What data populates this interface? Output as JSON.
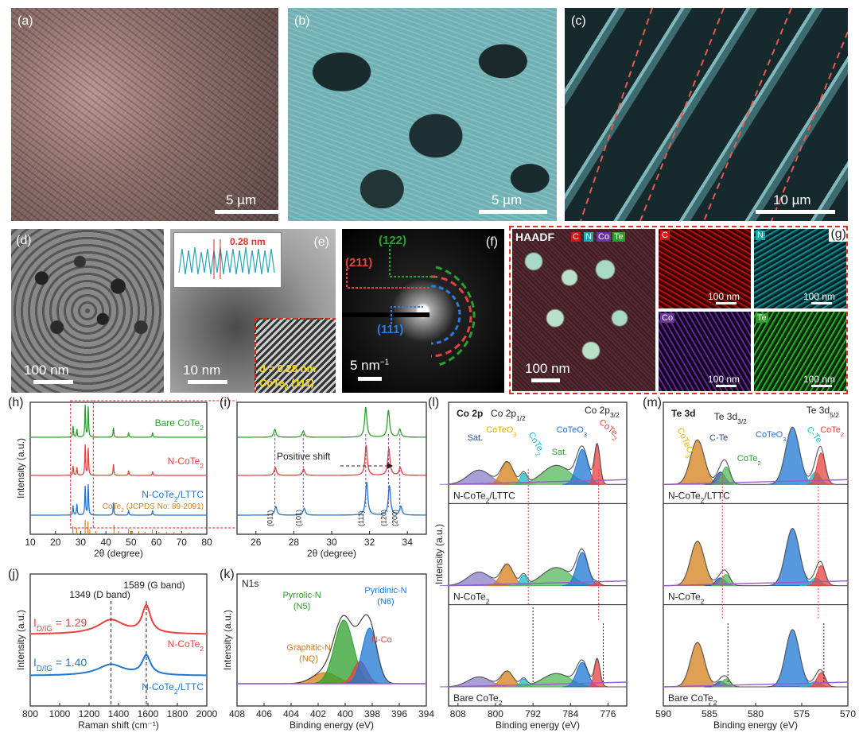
{
  "labels": {
    "a": "(a)",
    "b": "(b)",
    "c": "(c)",
    "d": "(d)",
    "e": "(e)",
    "f": "(f)",
    "g": "(g)",
    "h": "(h)",
    "i": "(i)",
    "j": "(j)",
    "k": "(k)",
    "l": "(l)",
    "m": "(m)"
  },
  "scalebars": {
    "a": "5 µm",
    "b": "5 µm",
    "c": "10 µm",
    "d": "100 nm",
    "e": "10 nm",
    "f": "5 nm",
    "haadf": "100 nm",
    "map": "100 nm"
  },
  "panel_e": {
    "profile_d": "0.28 nm",
    "d_label": "d = 0.28 nm",
    "plane": "CoTe",
    "plane_sub": "2",
    "plane_tail": " (111)"
  },
  "panel_f": {
    "p122": "(122)",
    "p211": "(211)",
    "p111": "(111)",
    "unit_sup": "−1"
  },
  "panel_g": {
    "haadf": "HAADF",
    "C": "C",
    "N": "N",
    "Co": "Co",
    "Te": "Te",
    "CoTe": "CoTe"
  },
  "colors": {
    "green": "#2ca02c",
    "red": "#e8423f",
    "blue": "#1f77d4",
    "orange": "#d4801a",
    "purple": "#7b4fb0",
    "cyan": "#17becf",
    "gold": "#e0b000"
  },
  "chart_data": [
    {
      "id": "h",
      "type": "line",
      "xlabel": "2θ (degree)",
      "ylabel": "Intensity (a.u.)",
      "xlim": [
        10,
        80
      ],
      "xticks": [
        10,
        20,
        30,
        40,
        50,
        60,
        70,
        80
      ],
      "series": [
        {
          "name": "Bare CoTe2",
          "peaks": [
            27,
            28.5,
            31.8,
            33,
            43,
            49,
            58.5
          ]
        },
        {
          "name": "N-CoTe2",
          "peaks": [
            27,
            28.5,
            31.8,
            33,
            43,
            49,
            58.5
          ]
        },
        {
          "name": "N-CoTe2/LTTC",
          "peaks": [
            27,
            28.5,
            31.8,
            33,
            43,
            49,
            58.5
          ]
        }
      ],
      "reference": "CoTe2 (JCPDS No: 89-2091)",
      "ref_peaks": [
        26.9,
        28.4,
        31.8,
        32.9,
        33.6,
        36,
        43.2,
        45,
        49,
        50.5,
        53,
        55.5,
        58.4,
        61,
        64,
        67,
        70,
        73
      ],
      "series_labels": {
        "s1": "Bare CoTe",
        "s2": "N-CoTe",
        "s3": "N-CoTe",
        "s3b": "/LTTC",
        "sub": "2",
        "ref": "CoTe",
        "ref_tail": " (JCPDS No: 89-2091)"
      }
    },
    {
      "id": "i",
      "type": "line",
      "xlabel": "2θ (degree)",
      "ylabel": "",
      "xlim": [
        25,
        35
      ],
      "xticks": [
        26,
        28,
        30,
        32,
        34
      ],
      "annotation": "Positive shift",
      "peaks": [
        {
          "hkl": "(011)",
          "x": 27
        },
        {
          "hkl": "(101)",
          "x": 28.5
        },
        {
          "hkl": "(111)",
          "x": 31.8
        },
        {
          "hkl": "(120)",
          "x": 33
        },
        {
          "hkl": "(200)",
          "x": 33.6
        }
      ]
    },
    {
      "id": "j",
      "type": "line",
      "xlabel": "Raman shift (cm⁻¹)",
      "ylabel": "Intensity (a.u.)",
      "xlim": [
        800,
        2000
      ],
      "xticks": [
        800,
        1000,
        1200,
        1400,
        1600,
        1800,
        2000
      ],
      "peaks": [
        {
          "label": "1349 (D band)",
          "x": 1349
        },
        {
          "label": "1589 (G band)",
          "x": 1589
        }
      ],
      "series": [
        {
          "name": "N-CoTe2",
          "ratio": "1.29"
        },
        {
          "name": "N-CoTe2/LTTC",
          "ratio": "1.40"
        }
      ],
      "texts": {
        "ratio_head": "I",
        "ratio_sub": "D",
        "ratio_sub2": "/I",
        "ratio_sub3": "G",
        "eq1": " = 1.29",
        "eq2": " = 1.40",
        "n1": "N-CoTe",
        "n2": "N-CoTe",
        "n2b": "/LTTC",
        "sub": "2"
      }
    },
    {
      "id": "k",
      "type": "line",
      "title": "N1s",
      "xlabel": "Binding energy (eV)",
      "ylabel": "Intensity (a.u.)",
      "xlim": [
        408,
        394
      ],
      "xticks": [
        408,
        406,
        404,
        402,
        400,
        398,
        396,
        394
      ],
      "components": [
        {
          "name": "Graphitic-N",
          "sub": "(NQ)",
          "center": 401.5,
          "color": "orange"
        },
        {
          "name": "Pyrrolic-N",
          "sub": "(N5)",
          "center": 400.1,
          "color": "green"
        },
        {
          "name": "Pyridinic-N",
          "sub": "(N6)",
          "center": 398.3,
          "color": "blue"
        },
        {
          "name": "N-Co",
          "center": 398.9,
          "color": "red"
        }
      ]
    },
    {
      "id": "l",
      "type": "line",
      "title": "Co 2p",
      "xlabel": "Binding energy (eV)",
      "ylabel": "Intensity (a.u.)",
      "xlim": [
        810,
        772
      ],
      "xticks": [
        808,
        800,
        792,
        784,
        776
      ],
      "headers": {
        "p12": "Co 2p",
        "p12sub": "1/2",
        "p32": "Co 2p",
        "p32sub": "3/2"
      },
      "components": [
        "Sat.",
        "CoTeO3",
        "CoTe2",
        "Sat.",
        "CoTeO3",
        "CoTe2"
      ],
      "component_text": {
        "sat": "Sat.",
        "coteo": "CoTeO",
        "o3": "3",
        "cote": "CoTe",
        "t2": "2"
      },
      "samples": [
        {
          "name": "N-CoTe",
          "sub": "2",
          "tail": "/LTTC"
        },
        {
          "name": "N-CoTe",
          "sub": "2",
          "tail": ""
        },
        {
          "name": "Bare CoTe",
          "sub": "2",
          "tail": ""
        }
      ]
    },
    {
      "id": "m",
      "type": "line",
      "title": "Te 3d",
      "xlabel": "Binding energy (eV)",
      "ylabel": "",
      "xlim": [
        590,
        570
      ],
      "xticks": [
        590,
        585,
        580,
        575,
        570
      ],
      "headers": {
        "d32": "Te 3d",
        "d32sub": "3/2",
        "d52": "Te 3d",
        "d52sub": "5/2"
      },
      "components": [
        "CoTeO3",
        "C-Te",
        "CoTe2",
        "CoTeO3",
        "C-Te",
        "CoTe2"
      ],
      "component_text": {
        "cte": "C-Te",
        "coteo": "CoTeO",
        "o3": "3",
        "cote": "CoTe",
        "t2": "2"
      },
      "samples": [
        {
          "name": "N-CoTe",
          "sub": "2",
          "tail": "/LTTC"
        },
        {
          "name": "N-CoTe",
          "sub": "2",
          "tail": ""
        },
        {
          "name": "Bare CoTe",
          "sub": "2",
          "tail": ""
        }
      ]
    }
  ]
}
